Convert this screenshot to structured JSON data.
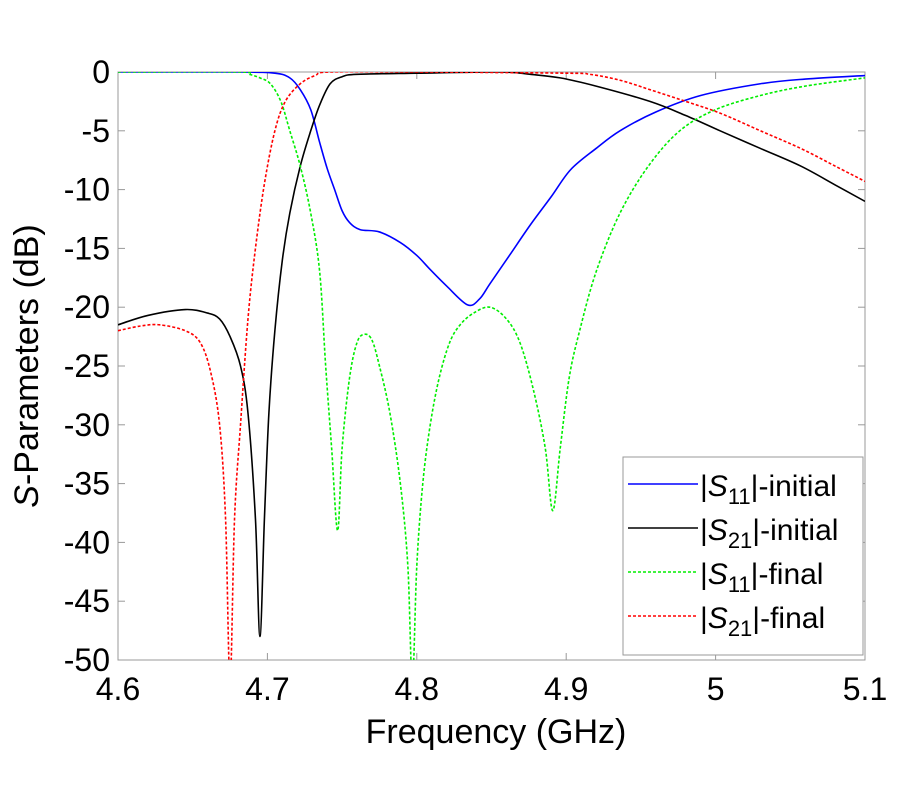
{
  "chart_data": {
    "type": "line",
    "title": "",
    "xlabel": "Frequency (GHz)",
    "ylabel_italic": "S",
    "ylabel_rest": "-Parameters (dB)",
    "xlim": [
      4.6,
      5.1
    ],
    "ylim": [
      -50,
      0
    ],
    "xticks": [
      4.6,
      4.7,
      4.8,
      4.9,
      5.0,
      5.1
    ],
    "xtick_labels": [
      "4.6",
      "4.7",
      "4.8",
      "4.9",
      "5",
      "5.1"
    ],
    "yticks": [
      0,
      -5,
      -10,
      -15,
      -20,
      -25,
      -30,
      -35,
      -40,
      -45,
      -50
    ],
    "ytick_labels": [
      "0",
      "-5",
      "-10",
      "-15",
      "-20",
      "-25",
      "-30",
      "-35",
      "-40",
      "-45",
      "-50"
    ],
    "grid": false,
    "legend_position": "bottom-right",
    "series": [
      {
        "name": "|S11|-initial",
        "label_sub": "11",
        "label_suffix": "|-initial",
        "color": "#0000ff",
        "dashed": false,
        "x": [
          4.6,
          4.68,
          4.705,
          4.715,
          4.722,
          4.729,
          4.735,
          4.74,
          4.745,
          4.75,
          4.755,
          4.762,
          4.775,
          4.789,
          4.8,
          4.809,
          4.82,
          4.834,
          4.842,
          4.849,
          4.862,
          4.876,
          4.89,
          4.903,
          4.92,
          4.936,
          4.96,
          4.99,
          5.03,
          5.06,
          5.1
        ],
        "y": [
          0,
          0,
          -0.1,
          -0.5,
          -1.5,
          -3.2,
          -6,
          -8.2,
          -10,
          -11.8,
          -12.8,
          -13.4,
          -13.6,
          -14.5,
          -15.6,
          -16.8,
          -18.2,
          -19.8,
          -19.3,
          -18,
          -15.6,
          -13,
          -10.6,
          -8.3,
          -6.5,
          -5,
          -3.4,
          -2,
          -1,
          -0.6,
          -0.3
        ]
      },
      {
        "name": "|S21|-initial",
        "label_sub": "21",
        "label_suffix": "|-initial",
        "color": "#000000",
        "dashed": false,
        "x": [
          4.6,
          4.62,
          4.645,
          4.66,
          4.668,
          4.675,
          4.682,
          4.687,
          4.692,
          4.695,
          4.698,
          4.701,
          4.705,
          4.71,
          4.715,
          4.722,
          4.729,
          4.735,
          4.742,
          4.75,
          4.76,
          4.8,
          4.856,
          4.876,
          4.896,
          4.92,
          4.956,
          4.98,
          5.003,
          5.03,
          5.057,
          5.08,
          5.1
        ],
        "y": [
          -21.5,
          -20.7,
          -20.2,
          -20.5,
          -21,
          -22.5,
          -25,
          -29,
          -38,
          -48,
          -38,
          -29,
          -22,
          -16,
          -12,
          -8,
          -5,
          -2.8,
          -1,
          -0.4,
          -0.2,
          -0.1,
          0,
          -0.2,
          -0.5,
          -1.2,
          -2.5,
          -3.7,
          -5,
          -6.5,
          -8,
          -9.6,
          -11
        ]
      },
      {
        "name": "|S11|-final",
        "label_sub": "11",
        "label_suffix": "|-final",
        "color": "#00ee00",
        "dashed": true,
        "x": [
          4.6,
          4.68,
          4.688,
          4.695,
          4.702,
          4.709,
          4.715,
          4.722,
          4.729,
          4.735,
          4.739,
          4.743,
          4.747,
          4.75,
          4.755,
          4.76,
          4.765,
          4.77,
          4.775,
          4.782,
          4.789,
          4.794,
          4.797,
          4.8,
          4.804,
          4.809,
          4.815,
          4.822,
          4.829,
          4.838,
          4.849,
          4.86,
          4.869,
          4.878,
          4.886,
          4.891,
          4.896,
          4.902,
          4.909,
          4.92,
          4.936,
          4.955,
          4.976,
          5.0,
          5.03,
          5.06,
          5.1
        ],
        "y": [
          0,
          0,
          -0.2,
          -0.5,
          -1,
          -2.5,
          -5,
          -8,
          -12,
          -17,
          -25,
          -32,
          -39,
          -32,
          -26,
          -23,
          -22.3,
          -22.8,
          -25,
          -29,
          -35,
          -42,
          -52,
          -42,
          -35,
          -30,
          -26,
          -23,
          -21.5,
          -20.5,
          -20,
          -21,
          -23,
          -27,
          -32,
          -37.3,
          -32,
          -26,
          -22,
          -17,
          -12,
          -8,
          -5,
          -3.2,
          -2,
          -1.2,
          -0.5
        ]
      },
      {
        "name": "|S21|-final",
        "label_sub": "21",
        "label_suffix": "|-final",
        "color": "#ff0000",
        "dashed": true,
        "x": [
          4.6,
          4.615,
          4.628,
          4.645,
          4.655,
          4.662,
          4.668,
          4.672,
          4.675,
          4.678,
          4.682,
          4.687,
          4.692,
          4.698,
          4.705,
          4.712,
          4.722,
          4.732,
          4.742,
          4.8,
          4.9,
          4.916,
          4.936,
          4.956,
          4.98,
          5.003,
          5.03,
          5.057,
          5.08,
          5.1
        ],
        "y": [
          -22,
          -21.6,
          -21.5,
          -22,
          -23,
          -25.5,
          -30,
          -38,
          -52,
          -38,
          -30,
          -21,
          -15,
          -9.5,
          -5,
          -2.5,
          -1,
          -0.3,
          0,
          0,
          -0.1,
          -0.2,
          -0.7,
          -1.5,
          -2.5,
          -3.5,
          -5,
          -6.5,
          -8,
          -9.3
        ]
      }
    ]
  }
}
